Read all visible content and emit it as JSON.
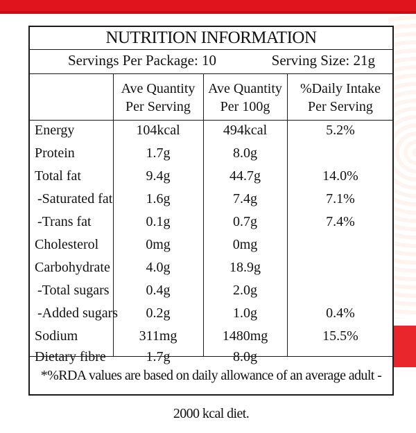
{
  "colors": {
    "brand_red": "#e0141c",
    "ink": "#111111"
  },
  "title": "NUTRITION INFORMATION",
  "servings_per_package": "Servings Per Package: 10",
  "serving_size": "Serving Size: 21g",
  "columns": {
    "per_serving": [
      "Ave Quantity",
      "Per Serving"
    ],
    "per_100g": [
      "Ave Quantity",
      "Per 100g"
    ],
    "daily_intake": [
      "%Daily Intake",
      "Per Serving"
    ]
  },
  "rows": [
    {
      "name": "Energy",
      "per_serving": "104kcal",
      "per_100g": "494kcal",
      "daily": "5.2%"
    },
    {
      "name": "Protein",
      "per_serving": "1.7g",
      "per_100g": "8.0g",
      "daily": ""
    },
    {
      "name": "Total fat",
      "per_serving": "9.4g",
      "per_100g": "44.7g",
      "daily": "14.0%"
    },
    {
      "name": "-Saturated fat",
      "per_serving": "1.6g",
      "per_100g": "7.4g",
      "daily": "7.1%"
    },
    {
      "name": "-Trans fat",
      "per_serving": "0.1g",
      "per_100g": "0.7g",
      "daily": "7.4%"
    },
    {
      "name": "Cholesterol",
      "per_serving": "0mg",
      "per_100g": "0mg",
      "daily": ""
    },
    {
      "name": "Carbohydrate",
      "per_serving": "4.0g",
      "per_100g": "18.9g",
      "daily": ""
    },
    {
      "name": "-Total sugars",
      "per_serving": "0.4g",
      "per_100g": "2.0g",
      "daily": ""
    },
    {
      "name": "-Added sugars",
      "per_serving": "0.2g",
      "per_100g": "1.0g",
      "daily": "0.4%"
    },
    {
      "name": "Sodium",
      "per_serving": "311mg",
      "per_100g": "1480mg",
      "daily": "15.5%"
    },
    {
      "name": "Dietary fibre",
      "per_serving": "1.7g",
      "per_100g": "8.0g",
      "daily": ""
    }
  ],
  "footnote": "*%RDA values are based on daily allowance of an average adult - 2000 kcal diet."
}
